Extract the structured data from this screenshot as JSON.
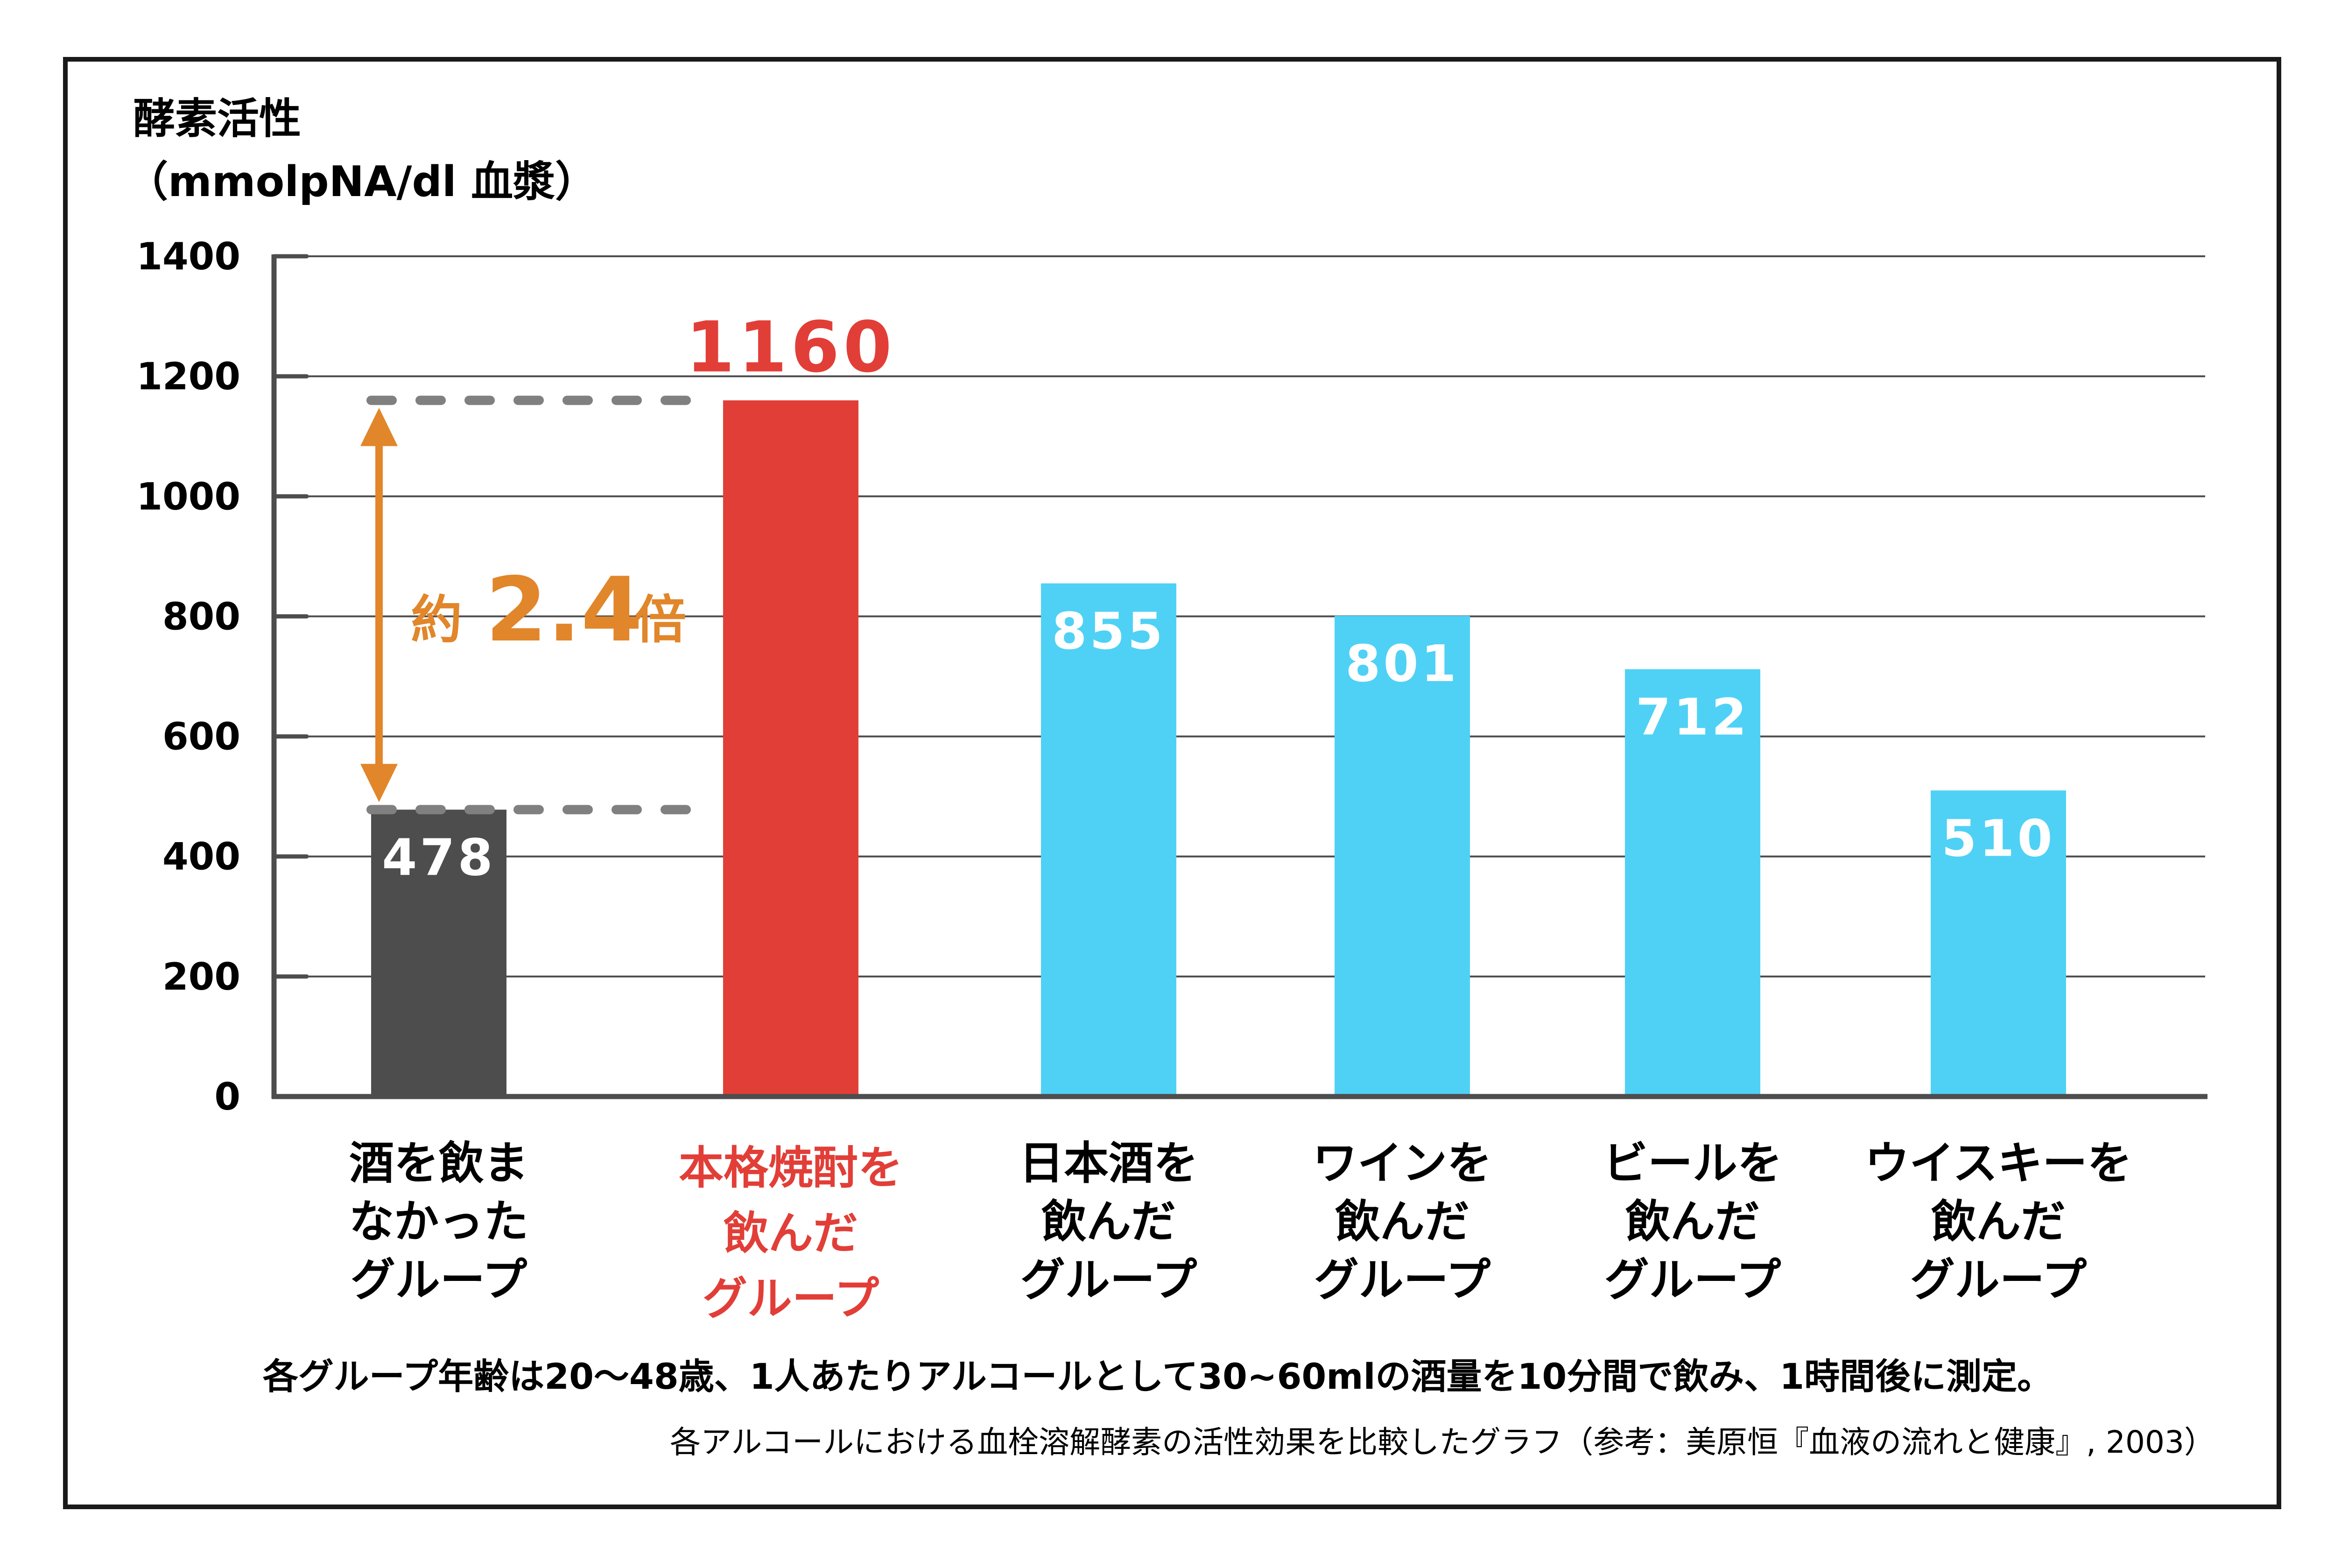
{
  "chart_data": {
    "type": "bar",
    "title": "",
    "ylabel_line1": "酵素活性",
    "ylabel_line2": "（mmolpNA/dl 血漿）",
    "xlabel": "",
    "ylim": [
      0,
      1400
    ],
    "yticks": [
      0,
      200,
      400,
      600,
      800,
      1000,
      1200,
      1400
    ],
    "grid": true,
    "categories": [
      [
        "酒を飲ま",
        "なかった",
        "グループ"
      ],
      [
        "本格焼酎を",
        "飲んだ",
        "グループ"
      ],
      [
        "日本酒を",
        "飲んだ",
        "グループ"
      ],
      [
        "ワインを",
        "飲んだ",
        "グループ"
      ],
      [
        "ビールを",
        "飲んだ",
        "グループ"
      ],
      [
        "ウイスキーを",
        "飲んだ",
        "グループ"
      ]
    ],
    "values": [
      478,
      1160,
      855,
      801,
      712,
      510
    ],
    "value_labels": [
      "478",
      "1160",
      "855",
      "801",
      "712",
      "510"
    ],
    "bar_colors": [
      "#4d4d4d",
      "#e23e38",
      "#4fd1f5",
      "#4fd1f5",
      "#4fd1f5",
      "#4fd1f5"
    ],
    "highlight_index": 1,
    "annotation": {
      "prefix": "約",
      "value": "2.4",
      "suffix": "倍",
      "from_value": 478,
      "to_value": 1160,
      "color": "#e1862a"
    },
    "notes": [
      "各グループ年齢は20～48歳、1人あたりアルコールとして30~60mlの酒量を10分間で飲み、1時間後に測定。",
      "各アルコールにおける血栓溶解酵素の活性効果を比較したグラフ（参考：美原恒『血液の流れと健康』, 2003）"
    ]
  },
  "colors": {
    "axis": "#4d4d4d",
    "grid": "#4d4d4d",
    "dash": "#808080",
    "highlight_text": "#e23e38",
    "text": "#000000"
  }
}
